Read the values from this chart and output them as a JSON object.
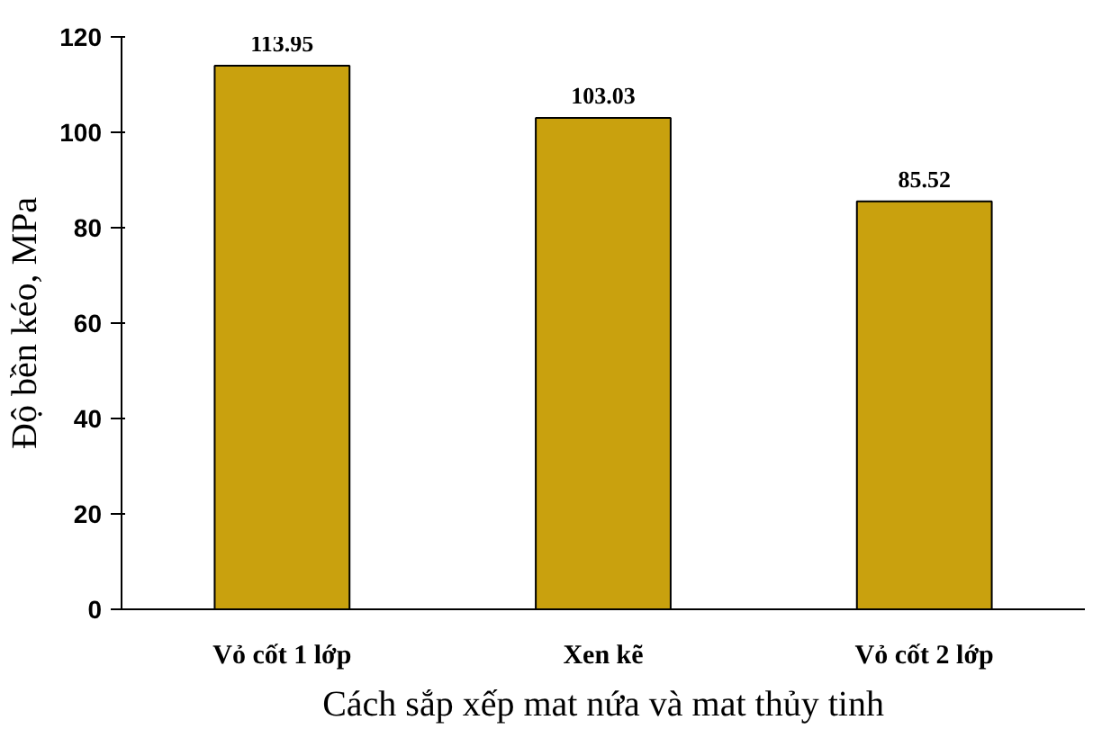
{
  "chart_data": {
    "type": "bar",
    "categories": [
      "Vỏ cốt 1 lớp",
      "Xen kẽ",
      "Vỏ cốt 2 lớp"
    ],
    "values": [
      113.95,
      103.03,
      85.52
    ],
    "color": "#c9a10e",
    "ylim": [
      0,
      120
    ],
    "yticks": [
      0,
      20,
      40,
      60,
      80,
      100,
      120
    ],
    "xlabel": "Cách sắp xếp mat nứa và mat thủy tinh",
    "ylabel": "Độ bền kéo, MPa",
    "data_labels": true,
    "grid": false
  }
}
